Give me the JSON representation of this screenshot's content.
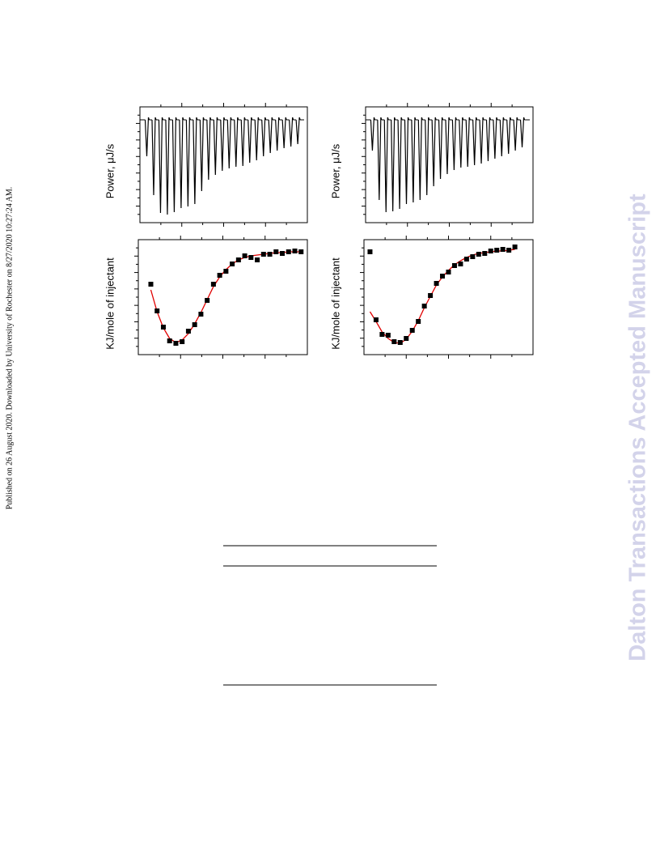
{
  "document": {
    "side_note": "Published on 26 August 2020. Downloaded by University of Rochester on 8/27/2020 10:27:24 AM.",
    "watermark": "Dalton Transactions Accepted Manuscript"
  },
  "chart_data": [
    {
      "type": "thermogram",
      "ylabel": "Power, μJ/s",
      "color": "#000000",
      "x": [
        1,
        2,
        3,
        4,
        5,
        6,
        7,
        8,
        9,
        10,
        11,
        12,
        13,
        14,
        15,
        16,
        17,
        18,
        19,
        20,
        21,
        22,
        23
      ],
      "values": [
        -45,
        -93,
        -115,
        -117,
        -114,
        -109,
        -107,
        -104,
        -88,
        -74,
        -68,
        -63,
        -60,
        -58,
        -57,
        -53,
        -50,
        -45,
        -41,
        -38,
        -35,
        -33,
        -30
      ],
      "xlim": [
        0,
        24.4
      ],
      "ylim": [
        -127,
        16
      ]
    },
    {
      "type": "thermogram",
      "ylabel": "Power, μJ/s",
      "color": "#000000",
      "x": [
        1,
        2,
        3,
        4,
        5,
        6,
        7,
        8,
        9,
        10,
        11,
        12,
        13,
        14,
        15,
        16,
        17,
        18,
        19,
        20,
        21,
        22,
        23
      ],
      "values": [
        -38,
        -99,
        -114,
        -113,
        -110,
        -104,
        -102,
        -99,
        -93,
        -82,
        -73,
        -67,
        -62,
        -59,
        -58,
        -56,
        -54,
        -51,
        -48,
        -45,
        -42,
        -38,
        -34
      ],
      "xlim": [
        0,
        24.6
      ],
      "ylim": [
        -127,
        16
      ]
    },
    {
      "type": "scatter",
      "ylabel": "KJ/mole of injectant",
      "color": "#000000",
      "fit_color": "#e00000",
      "x": [
        1,
        2,
        3,
        4,
        5,
        6,
        7,
        8,
        9,
        10,
        11,
        12,
        13,
        14,
        15,
        16,
        17,
        18,
        19,
        20,
        21,
        22,
        23,
        24,
        25
      ],
      "values": [
        -51,
        -84,
        -104,
        -121,
        -124,
        -122,
        -109,
        -101,
        -88,
        -71,
        -51,
        -40,
        -35,
        -26,
        -21,
        -16,
        -18,
        -21,
        -14,
        -14,
        -11,
        -13,
        -11,
        -10,
        -11
      ],
      "fit": [
        -58,
        -85,
        -105,
        -118,
        -123,
        -120,
        -112,
        -100,
        -86,
        -70,
        -54,
        -42,
        -33,
        -26,
        -21,
        -18,
        -16,
        -15,
        -14,
        -13,
        -12,
        -12,
        -11,
        -11,
        -11
      ],
      "xlim": [
        -1,
        26
      ],
      "ylim": [
        -138,
        4
      ]
    },
    {
      "type": "scatter",
      "ylabel": "KJ/mole of injectant",
      "color": "#000000",
      "fit_color": "#e00000",
      "x": [
        1,
        2,
        3,
        4,
        5,
        6,
        7,
        8,
        9,
        10,
        11,
        12,
        13,
        14,
        15,
        16,
        17,
        18,
        19,
        20,
        21,
        22,
        23,
        24,
        25
      ],
      "values": [
        -11,
        -95,
        -113,
        -114,
        -122,
        -123,
        -118,
        -108,
        -97,
        -78,
        -65,
        -50,
        -41,
        -36,
        -28,
        -26,
        -20,
        -17,
        -14,
        -13,
        -10,
        -9,
        -8,
        -9,
        -5
      ],
      "fit": [
        -85,
        -97,
        -110,
        -118,
        -123,
        -124,
        -119,
        -109,
        -96,
        -80,
        -66,
        -52,
        -42,
        -34,
        -27,
        -22,
        -18,
        -15,
        -13,
        -12,
        -11,
        -10,
        -10,
        -9,
        -8
      ],
      "xlim": [
        0,
        28
      ],
      "ylim": [
        -138,
        4
      ]
    }
  ]
}
